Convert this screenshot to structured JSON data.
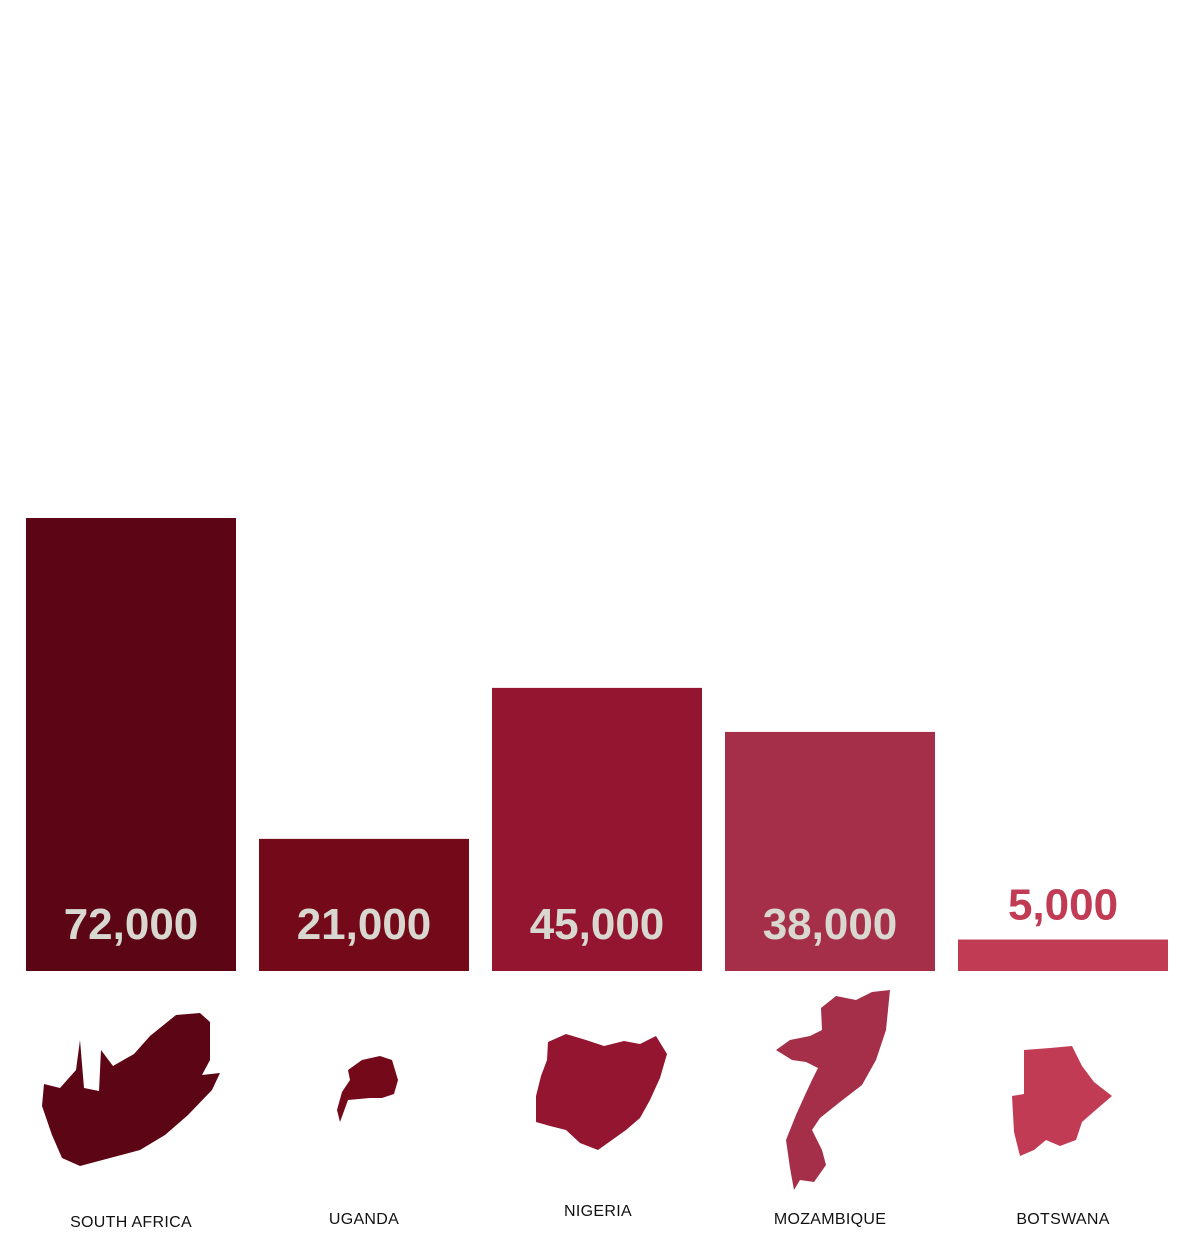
{
  "chart_data": {
    "type": "bar",
    "categories": [
      "SOUTH AFRICA",
      "UGANDA",
      "NIGERIA",
      "MOZAMBIQUE",
      "BOTSWANA"
    ],
    "values": [
      72000,
      21000,
      45000,
      38000,
      5000
    ],
    "value_labels": [
      "72,000",
      "21,000",
      "45,000",
      "38,000",
      "5,000"
    ],
    "bar_colors": [
      "#5c0615",
      "#730919",
      "#93152f",
      "#a52f49",
      "#c13b55"
    ],
    "label_colors": [
      "#d8d8d0",
      "#d8d8d0",
      "#d8d8d0",
      "#d8d8d0",
      "#c13b55"
    ],
    "map_icons": [
      "south-africa-map-icon",
      "uganda-map-icon",
      "nigeria-map-icon",
      "mozambique-map-icon",
      "botswana-map-icon"
    ],
    "ylim": [
      0,
      72000
    ],
    "grid": false,
    "legend": "none"
  }
}
